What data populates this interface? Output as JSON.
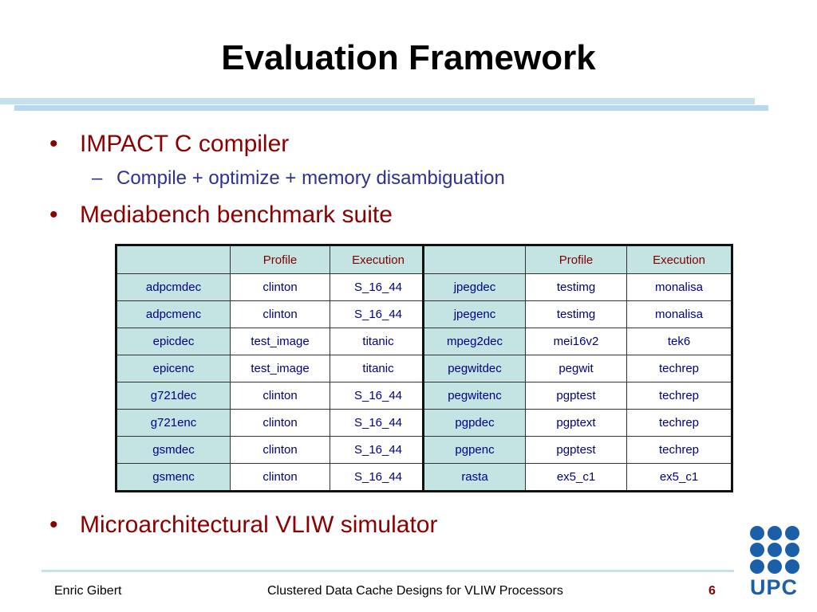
{
  "header": {
    "title": "Evaluation Framework"
  },
  "bullets": [
    {
      "text": "IMPACT C compiler",
      "sub": [
        "Compile + optimize + memory disambiguation"
      ]
    },
    {
      "text": "Mediabench benchmark suite"
    },
    {
      "text": "Microarchitectural VLIW simulator"
    }
  ],
  "tables": [
    {
      "header": [
        "Profile",
        "Execution"
      ],
      "rows": [
        [
          "adpcmdec",
          "clinton",
          "S_16_44"
        ],
        [
          "adpcmenc",
          "clinton",
          "S_16_44"
        ],
        [
          "epicdec",
          "test_image",
          "titanic"
        ],
        [
          "epicenc",
          "test_image",
          "titanic"
        ],
        [
          "g721dec",
          "clinton",
          "S_16_44"
        ],
        [
          "g721enc",
          "clinton",
          "S_16_44"
        ],
        [
          "gsmdec",
          "clinton",
          "S_16_44"
        ],
        [
          "gsmenc",
          "clinton",
          "S_16_44"
        ]
      ]
    },
    {
      "header": [
        "Profile",
        "Execution"
      ],
      "rows": [
        [
          "jpegdec",
          "testimg",
          "monalisa"
        ],
        [
          "jpegenc",
          "testimg",
          "monalisa"
        ],
        [
          "mpeg2dec",
          "mei16v2",
          "tek6"
        ],
        [
          "pegwitdec",
          "pegwit",
          "techrep"
        ],
        [
          "pegwitenc",
          "pgptest",
          "techrep"
        ],
        [
          "pgpdec",
          "pgptext",
          "techrep"
        ],
        [
          "pgpenc",
          "pgptest",
          "techrep"
        ],
        [
          "rasta",
          "ex5_c1",
          "ex5_c1"
        ]
      ]
    }
  ],
  "footer": {
    "author": "Enric Gibert",
    "talk": "Clustered Data Cache Designs for VLIW Processors",
    "page": "6",
    "logo": "UPC"
  }
}
